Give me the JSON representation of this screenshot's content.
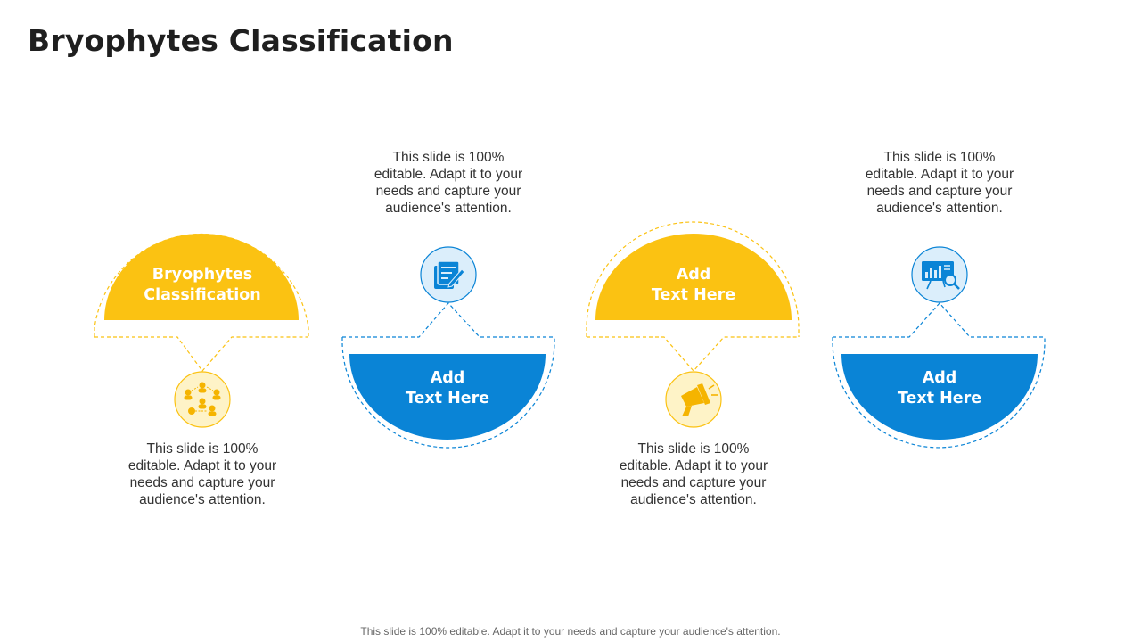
{
  "title": "Bryophytes Classification",
  "colors": {
    "accent_yellow": "#FBC212",
    "accent_blue": "#0A84D6",
    "yellow_icon_bg": "#FEF3C7",
    "blue_icon_bg": "#DBEEFB"
  },
  "items": [
    {
      "label": "Bryophytes\nClassification",
      "description": "This slide is 100% editable. Adapt it to your needs and capture your audience's attention.",
      "icon": "network-people-icon"
    },
    {
      "label": "Add\nText Here",
      "description": "This slide is 100% editable. Adapt it to your needs and capture your audience's attention.",
      "icon": "notes-edit-icon"
    },
    {
      "label": "Add\nText Here",
      "description": "This slide is 100% editable. Adapt it to your needs and capture your audience's attention.",
      "icon": "megaphone-icon"
    },
    {
      "label": "Add\nText Here",
      "description": "This slide is 100% editable. Adapt it to your needs and capture your audience's attention.",
      "icon": "chart-search-icon"
    }
  ],
  "footer": "This slide is 100% editable. Adapt it to your needs and capture your audience's attention."
}
